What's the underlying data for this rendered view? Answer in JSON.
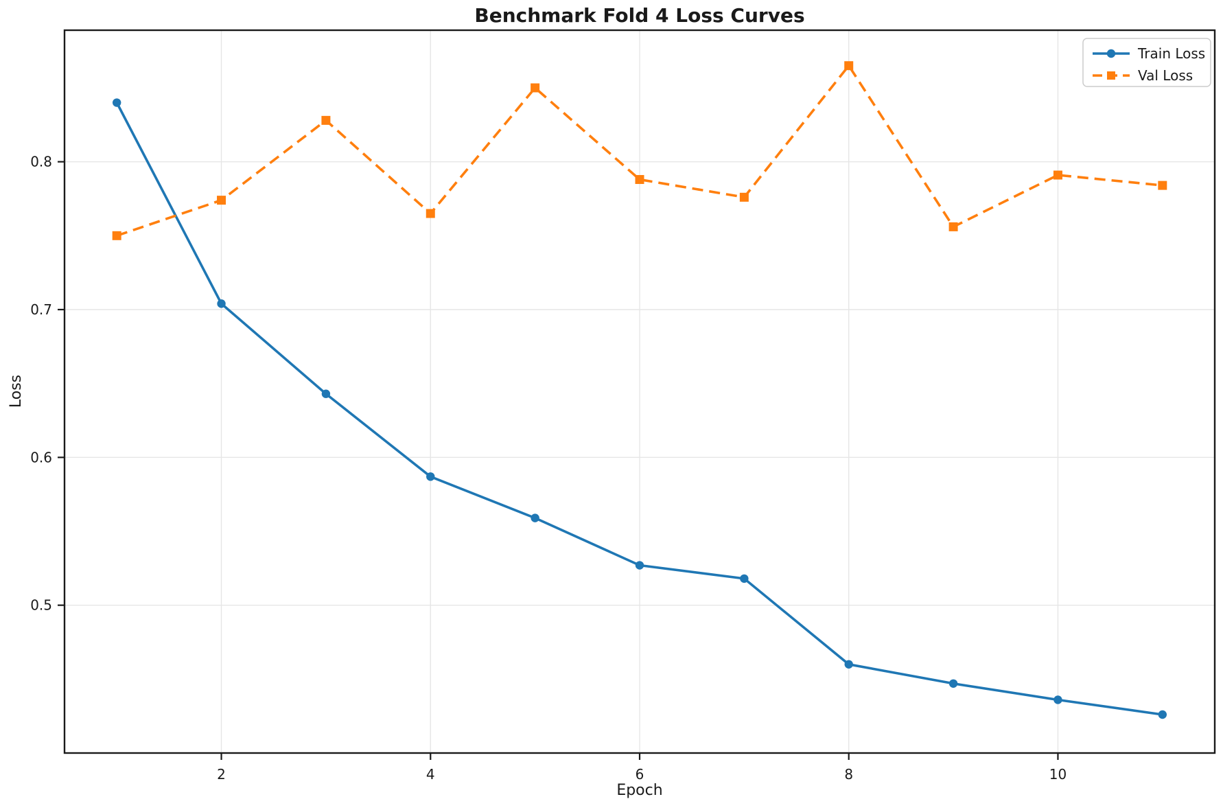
{
  "title": "Benchmark Fold 4 Loss Curves",
  "chart_data": {
    "type": "line",
    "title": "Benchmark Fold 4 Loss Curves",
    "xlabel": "Epoch",
    "ylabel": "Loss",
    "x": [
      1,
      2,
      3,
      4,
      5,
      6,
      7,
      8,
      9,
      10,
      11
    ],
    "series": [
      {
        "name": "Train Loss",
        "color": "#1f77b4",
        "line_style": "solid",
        "marker": "circle",
        "values": [
          0.84,
          0.704,
          0.643,
          0.587,
          0.559,
          0.527,
          0.518,
          0.46,
          0.447,
          0.436,
          0.426
        ]
      },
      {
        "name": "Val Loss",
        "color": "#ff7f0e",
        "line_style": "dashed",
        "marker": "square",
        "values": [
          0.75,
          0.774,
          0.828,
          0.765,
          0.85,
          0.788,
          0.776,
          0.865,
          0.756,
          0.791,
          0.784
        ]
      }
    ],
    "xlim": [
      0.5,
      11.5
    ],
    "ylim": [
      0.4,
      0.889
    ],
    "xticks": [
      2,
      4,
      6,
      8,
      10
    ],
    "yticks": [
      0.5,
      0.6,
      0.7,
      0.8
    ],
    "ytick_labels": [
      "0.5",
      "0.6",
      "0.7",
      "0.8"
    ],
    "grid": true,
    "legend_position": "upper right"
  }
}
